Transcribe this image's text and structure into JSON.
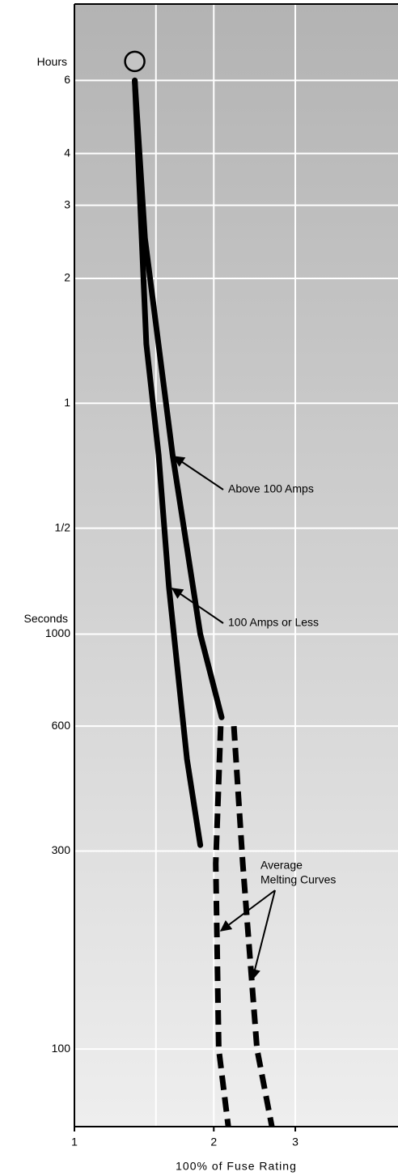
{
  "chart_data": {
    "type": "line",
    "xlabel": "100% of Fuse Rating",
    "xlog": true,
    "ylog": true,
    "xlim": [
      1,
      5
    ],
    "xticks": [
      1,
      2,
      3
    ],
    "xminor_grid": [
      1.5
    ],
    "ylim": [
      65,
      33000
    ],
    "yticks": [
      {
        "value": 21600,
        "label": "6"
      },
      {
        "value": 14400,
        "label": "4"
      },
      {
        "value": 10800,
        "label": "3"
      },
      {
        "value": 7200,
        "label": "2"
      },
      {
        "value": 3600,
        "label": "1"
      },
      {
        "value": 1800,
        "label": "1/2"
      },
      1000,
      600,
      300,
      100
    ],
    "hours_label": "Hours",
    "seconds_label": "Seconds",
    "grid": true,
    "start_marker": {
      "x": 1.35,
      "y": 24000
    },
    "series": [
      {
        "color": "#000000",
        "dashed": false,
        "x": [
          1.35,
          1.42,
          1.63,
          1.87,
          2.08
        ],
        "values": [
          21600,
          9000,
          2700,
          1000,
          630
        ]
      },
      {
        "color": "#000000",
        "dashed": false,
        "x": [
          1.35,
          1.43,
          1.52,
          1.6,
          1.75,
          1.87
        ],
        "values": [
          21600,
          5000,
          2700,
          1300,
          500,
          310
        ]
      },
      {
        "color": "#000000",
        "dashed": true,
        "x": [
          2.07,
          2.02,
          2.05,
          2.15
        ],
        "values": [
          600,
          280,
          100,
          65
        ]
      },
      {
        "color": "#000000",
        "dashed": true,
        "x": [
          2.21,
          2.31,
          2.48,
          2.67
        ],
        "values": [
          600,
          280,
          100,
          65
        ]
      }
    ],
    "annotations": [
      "Above 100 Amps",
      "100 Amps or Less",
      "Average",
      "Melting Curves"
    ]
  }
}
